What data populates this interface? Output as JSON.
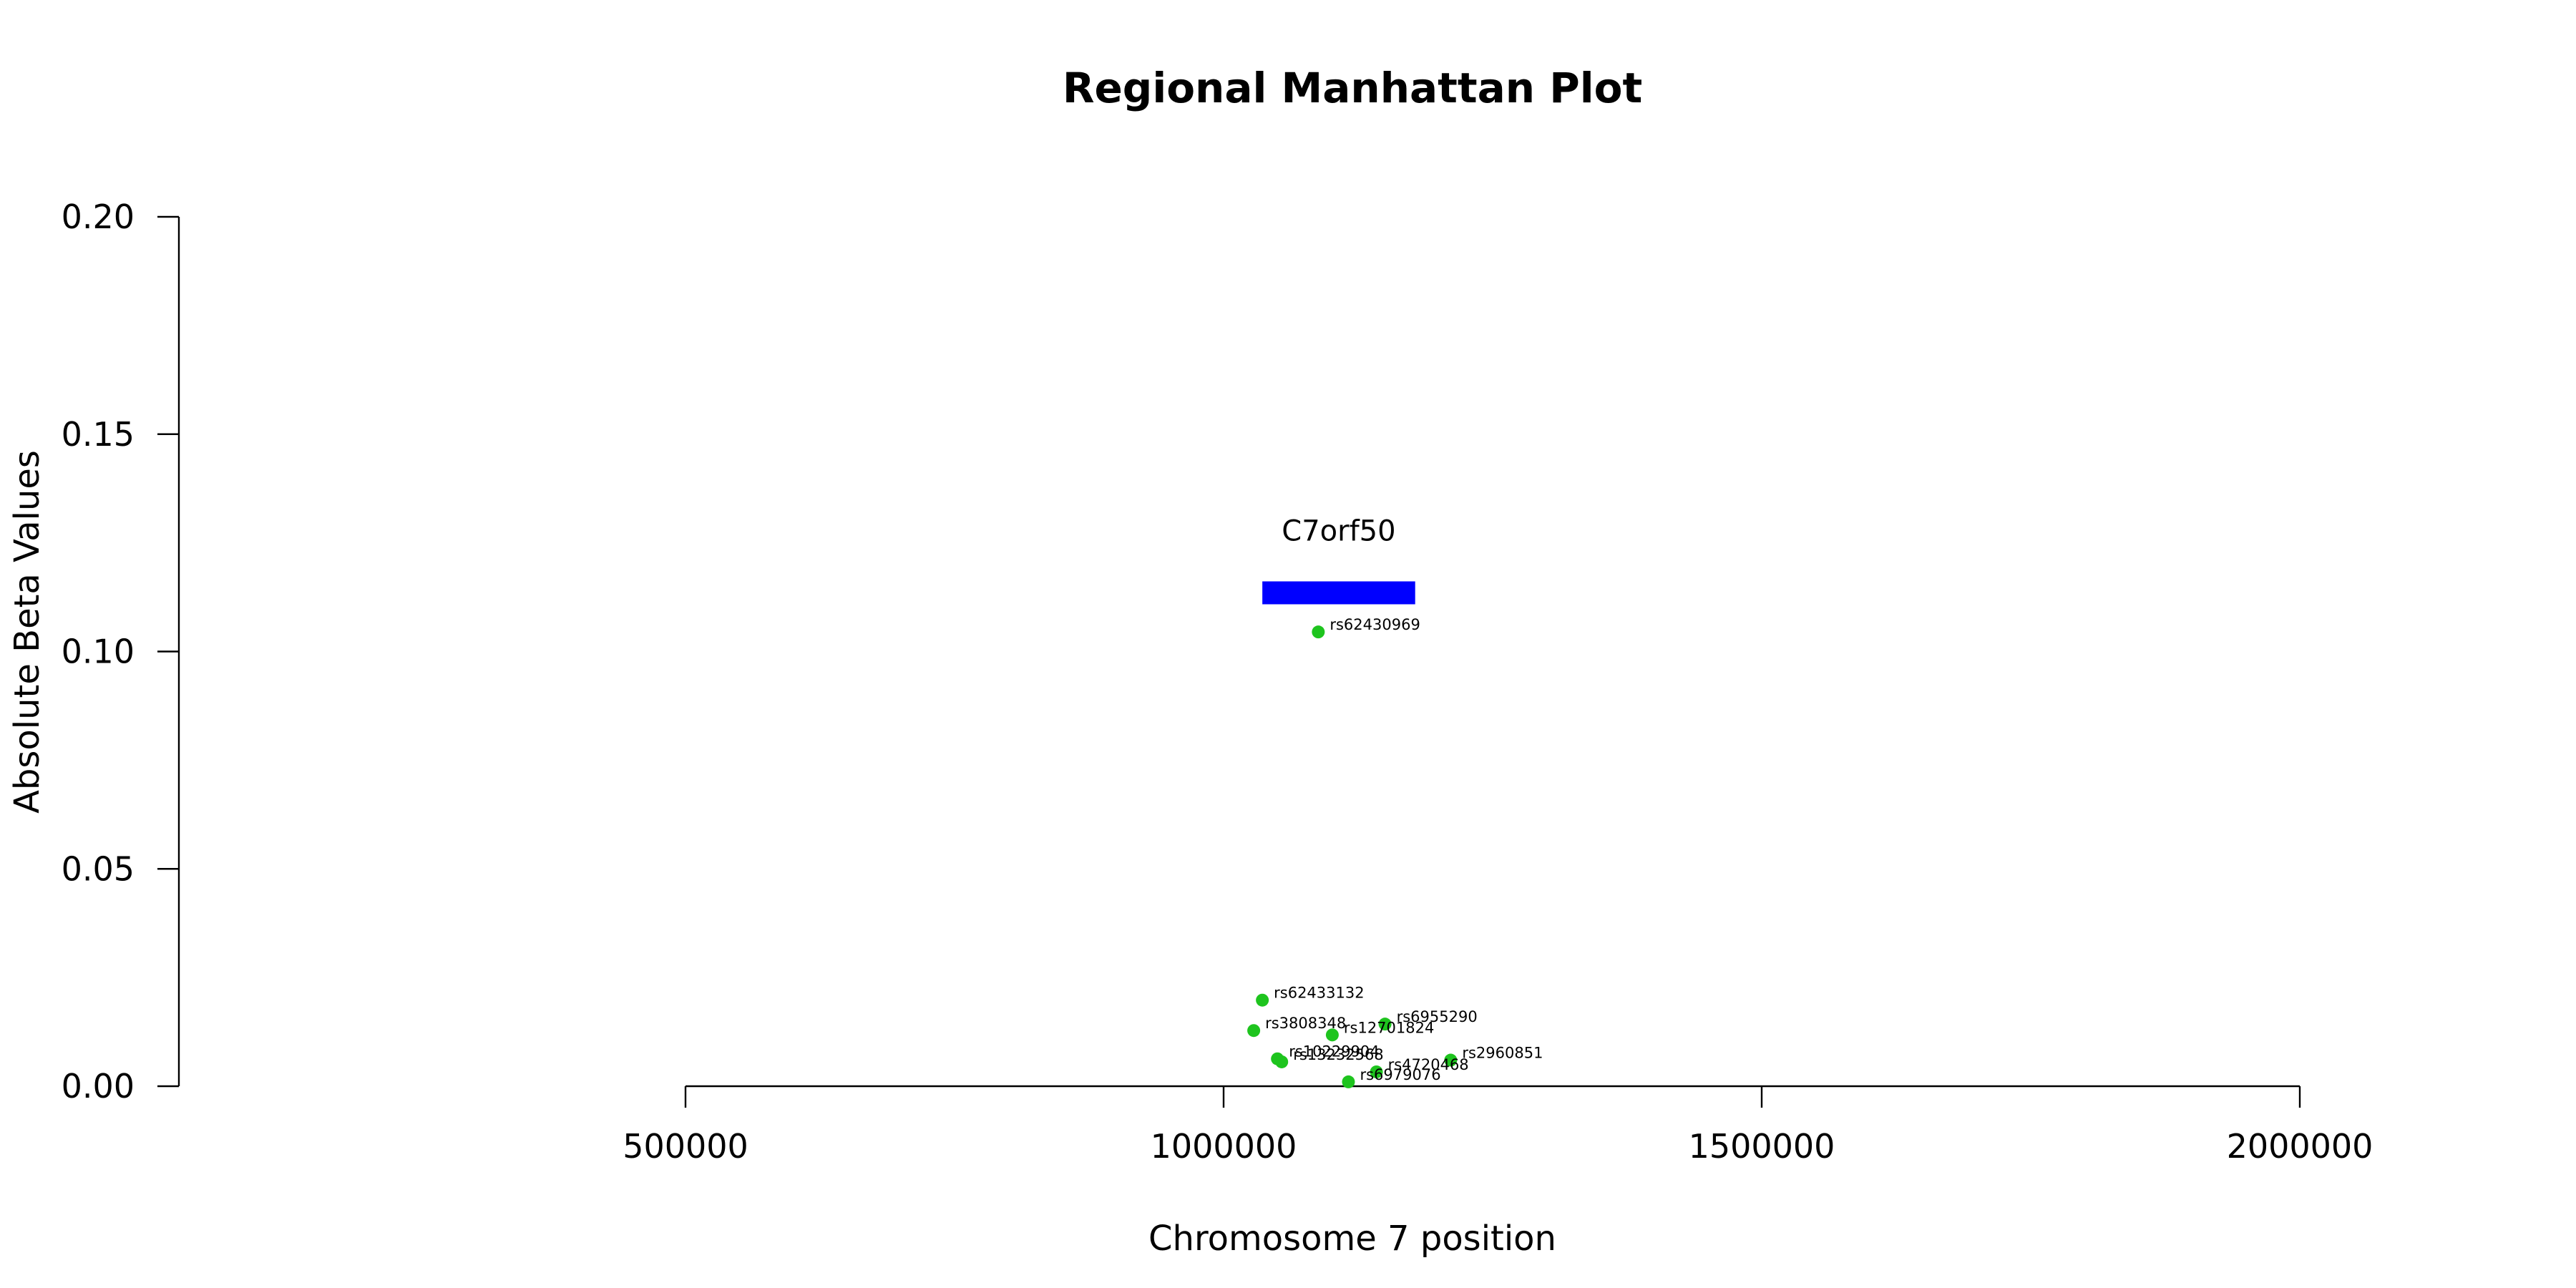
{
  "chart_data": {
    "type": "scatter",
    "title": "Regional Manhattan Plot",
    "xlabel": "Chromosome 7 position",
    "ylabel": "Absolute Beta Values",
    "xlim": [
      500000,
      2000000
    ],
    "ylim": [
      0,
      0.2
    ],
    "x_ticks": [
      500000,
      1000000,
      1500000,
      2000000
    ],
    "x_tick_labels": [
      "500000",
      "1000000",
      "1500000",
      "2000000"
    ],
    "y_ticks": [
      0,
      0.05,
      0.1,
      0.15,
      0.2
    ],
    "y_tick_labels": [
      "0.00",
      "0.05",
      "0.10",
      "0.15",
      "0.20"
    ],
    "point_color": "#1ec41e",
    "gene_color": "#0000ff",
    "genes": [
      {
        "name": "C7orf50",
        "start": 1036000,
        "end": 1178000,
        "y": 0.1135
      }
    ],
    "points": [
      {
        "label": "rs62430969",
        "x": 1088000,
        "y": 0.1045
      },
      {
        "label": "rs62433132",
        "x": 1036000,
        "y": 0.0198
      },
      {
        "label": "rs3808348",
        "x": 1028000,
        "y": 0.0128
      },
      {
        "label": "rs6955290",
        "x": 1150000,
        "y": 0.0143
      },
      {
        "label": "rs12701824",
        "x": 1101000,
        "y": 0.0118
      },
      {
        "label": "rs10229904",
        "x": 1050000,
        "y": 0.0063
      },
      {
        "label": "rs13232568",
        "x": 1054000,
        "y": 0.0056
      },
      {
        "label": "rs2960851",
        "x": 1211000,
        "y": 0.006
      },
      {
        "label": "rs4720468",
        "x": 1142000,
        "y": 0.0033
      },
      {
        "label": "rs6979076",
        "x": 1116000,
        "y": 0.001
      }
    ]
  }
}
